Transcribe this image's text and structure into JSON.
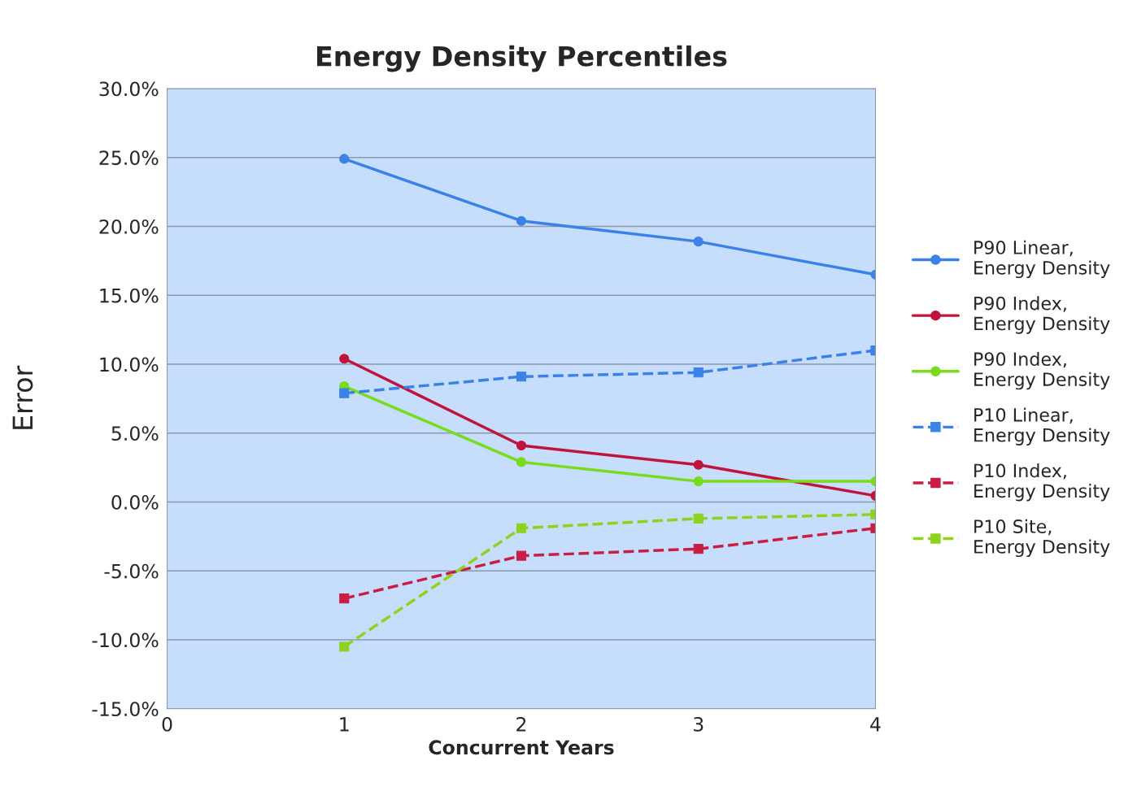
{
  "chart_data": {
    "type": "line",
    "title": "Energy Density Percentiles",
    "xlabel": "Concurrent Years",
    "ylabel": "Error",
    "x": [
      1,
      2,
      3,
      4
    ],
    "series": [
      {
        "name": "P90 Linear, Energy Density",
        "color": "#3c82e6",
        "marker": "circle",
        "line_style": "solid",
        "values": [
          24.9,
          20.4,
          18.9,
          16.5
        ]
      },
      {
        "name": "P90 Index, Energy Density",
        "color": "#c0143c",
        "marker": "circle",
        "line_style": "solid",
        "values": [
          10.4,
          4.1,
          2.7,
          0.45
        ]
      },
      {
        "name": "P90 Index, Energy Density",
        "color": "#78dc1e",
        "marker": "circle",
        "line_style": "solid",
        "values": [
          8.4,
          2.9,
          1.5,
          1.5
        ]
      },
      {
        "name": "P10 Linear, Energy Density",
        "color": "#3c82e6",
        "marker": "square",
        "line_style": "dashed",
        "values": [
          7.9,
          9.1,
          9.4,
          11.0
        ]
      },
      {
        "name": "P10 Index, Energy Density",
        "color": "#c81e46",
        "marker": "square",
        "line_style": "dashed",
        "values": [
          -7.0,
          -3.9,
          -3.4,
          -1.9
        ]
      },
      {
        "name": "P10 Site, Energy Density",
        "color": "#8cd21e",
        "marker": "square",
        "line_style": "dashed",
        "values": [
          -10.5,
          -1.9,
          -1.2,
          -0.9
        ]
      }
    ],
    "xlim": [
      0,
      4
    ],
    "xticks": [
      0,
      1,
      2,
      3,
      4
    ],
    "ylim": [
      -15,
      30
    ],
    "yticks": [
      {
        "value": -15,
        "label": "-15.0%"
      },
      {
        "value": -10,
        "label": "-10.0%"
      },
      {
        "value": -5,
        "label": "-5.0%"
      },
      {
        "value": 0,
        "label": "0.0%"
      },
      {
        "value": 5,
        "label": "5.0%"
      },
      {
        "value": 10,
        "label": "10.0%"
      },
      {
        "value": 15,
        "label": "15.0%"
      },
      {
        "value": 20,
        "label": "20.0%"
      },
      {
        "value": 25,
        "label": "25.0%"
      },
      {
        "value": 30,
        "label": "30.0%"
      }
    ],
    "grid": "y",
    "legend": "right"
  }
}
